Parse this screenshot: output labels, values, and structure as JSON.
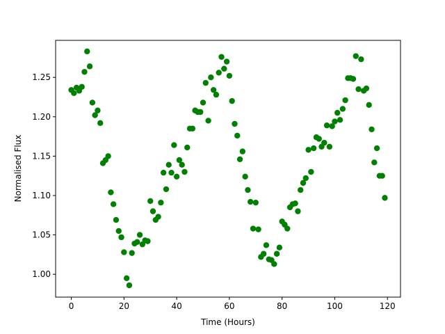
{
  "chart_data": {
    "type": "scatter",
    "x_label": "Time (Hours)",
    "y_label": "Normalised Flux",
    "color": "#008000",
    "x": [
      0,
      1,
      2,
      3,
      4,
      5,
      6,
      7,
      8,
      9,
      10,
      11,
      12,
      13,
      14,
      15,
      16,
      17,
      18,
      19,
      20,
      21,
      22,
      23,
      24,
      25,
      26,
      27,
      28,
      29,
      30,
      31,
      32,
      33,
      34,
      35,
      36,
      37,
      38,
      39,
      40,
      41,
      42,
      43,
      44,
      45,
      46,
      47,
      48,
      49,
      50,
      51,
      52,
      53,
      54,
      55,
      56,
      57,
      58,
      59,
      60,
      61,
      62,
      63,
      64,
      65,
      66,
      67,
      68,
      69,
      70,
      71,
      72,
      73,
      74,
      75,
      76,
      77,
      78,
      79,
      80,
      81,
      82,
      83,
      84,
      85,
      86,
      87,
      88,
      89,
      90,
      91,
      92,
      93,
      94,
      95,
      96,
      97,
      98,
      99,
      100,
      101,
      102,
      103,
      104,
      105,
      106,
      107,
      108,
      109,
      110,
      111,
      112,
      113,
      114,
      115,
      116,
      117,
      118,
      119
    ],
    "values": [
      1.234,
      1.23,
      1.237,
      1.233,
      1.238,
      1.257,
      1.283,
      1.264,
      1.218,
      1.202,
      1.208,
      1.192,
      1.141,
      1.145,
      1.15,
      1.104,
      1.089,
      1.069,
      1.055,
      1.047,
      1.028,
      0.995,
      0.986,
      1.027,
      1.039,
      1.041,
      1.05,
      1.038,
      1.043,
      1.042,
      1.093,
      1.08,
      1.069,
      1.073,
      1.091,
      1.129,
      1.108,
      1.139,
      1.129,
      1.164,
      1.124,
      1.145,
      1.139,
      1.13,
      1.161,
      1.185,
      1.185,
      1.208,
      1.206,
      1.206,
      1.218,
      1.243,
      1.195,
      1.25,
      1.234,
      1.228,
      1.256,
      1.276,
      1.261,
      1.27,
      1.252,
      1.22,
      1.191,
      1.176,
      1.146,
      1.156,
      1.124,
      1.107,
      1.092,
      1.058,
      1.091,
      1.057,
      1.022,
      1.026,
      1.037,
      1.019,
      1.018,
      1.013,
      1.026,
      1.034,
      1.067,
      1.063,
      1.058,
      1.085,
      1.089,
      1.09,
      1.08,
      1.107,
      1.116,
      1.122,
      1.158,
      1.13,
      1.16,
      1.174,
      1.172,
      1.162,
      1.167,
      1.189,
      1.162,
      1.188,
      1.194,
      1.205,
      1.196,
      1.21,
      1.221,
      1.249,
      1.249,
      1.248,
      1.277,
      1.235,
      1.273,
      1.233,
      1.236,
      1.215,
      1.184,
      1.142,
      1.16,
      1.125,
      1.125,
      1.097
    ],
    "xlim": [
      -5.95,
      124.95
    ],
    "ylim": [
      0.971,
      1.297
    ],
    "xticks": [
      0,
      20,
      40,
      60,
      80,
      100,
      120
    ],
    "yticks": [
      {
        "value": 1,
        "label": "1.00"
      },
      1.05,
      {
        "value": 1.1,
        "label": "1.10"
      },
      1.15,
      {
        "value": 1.2,
        "label": "1.20"
      },
      1.25
    ]
  }
}
